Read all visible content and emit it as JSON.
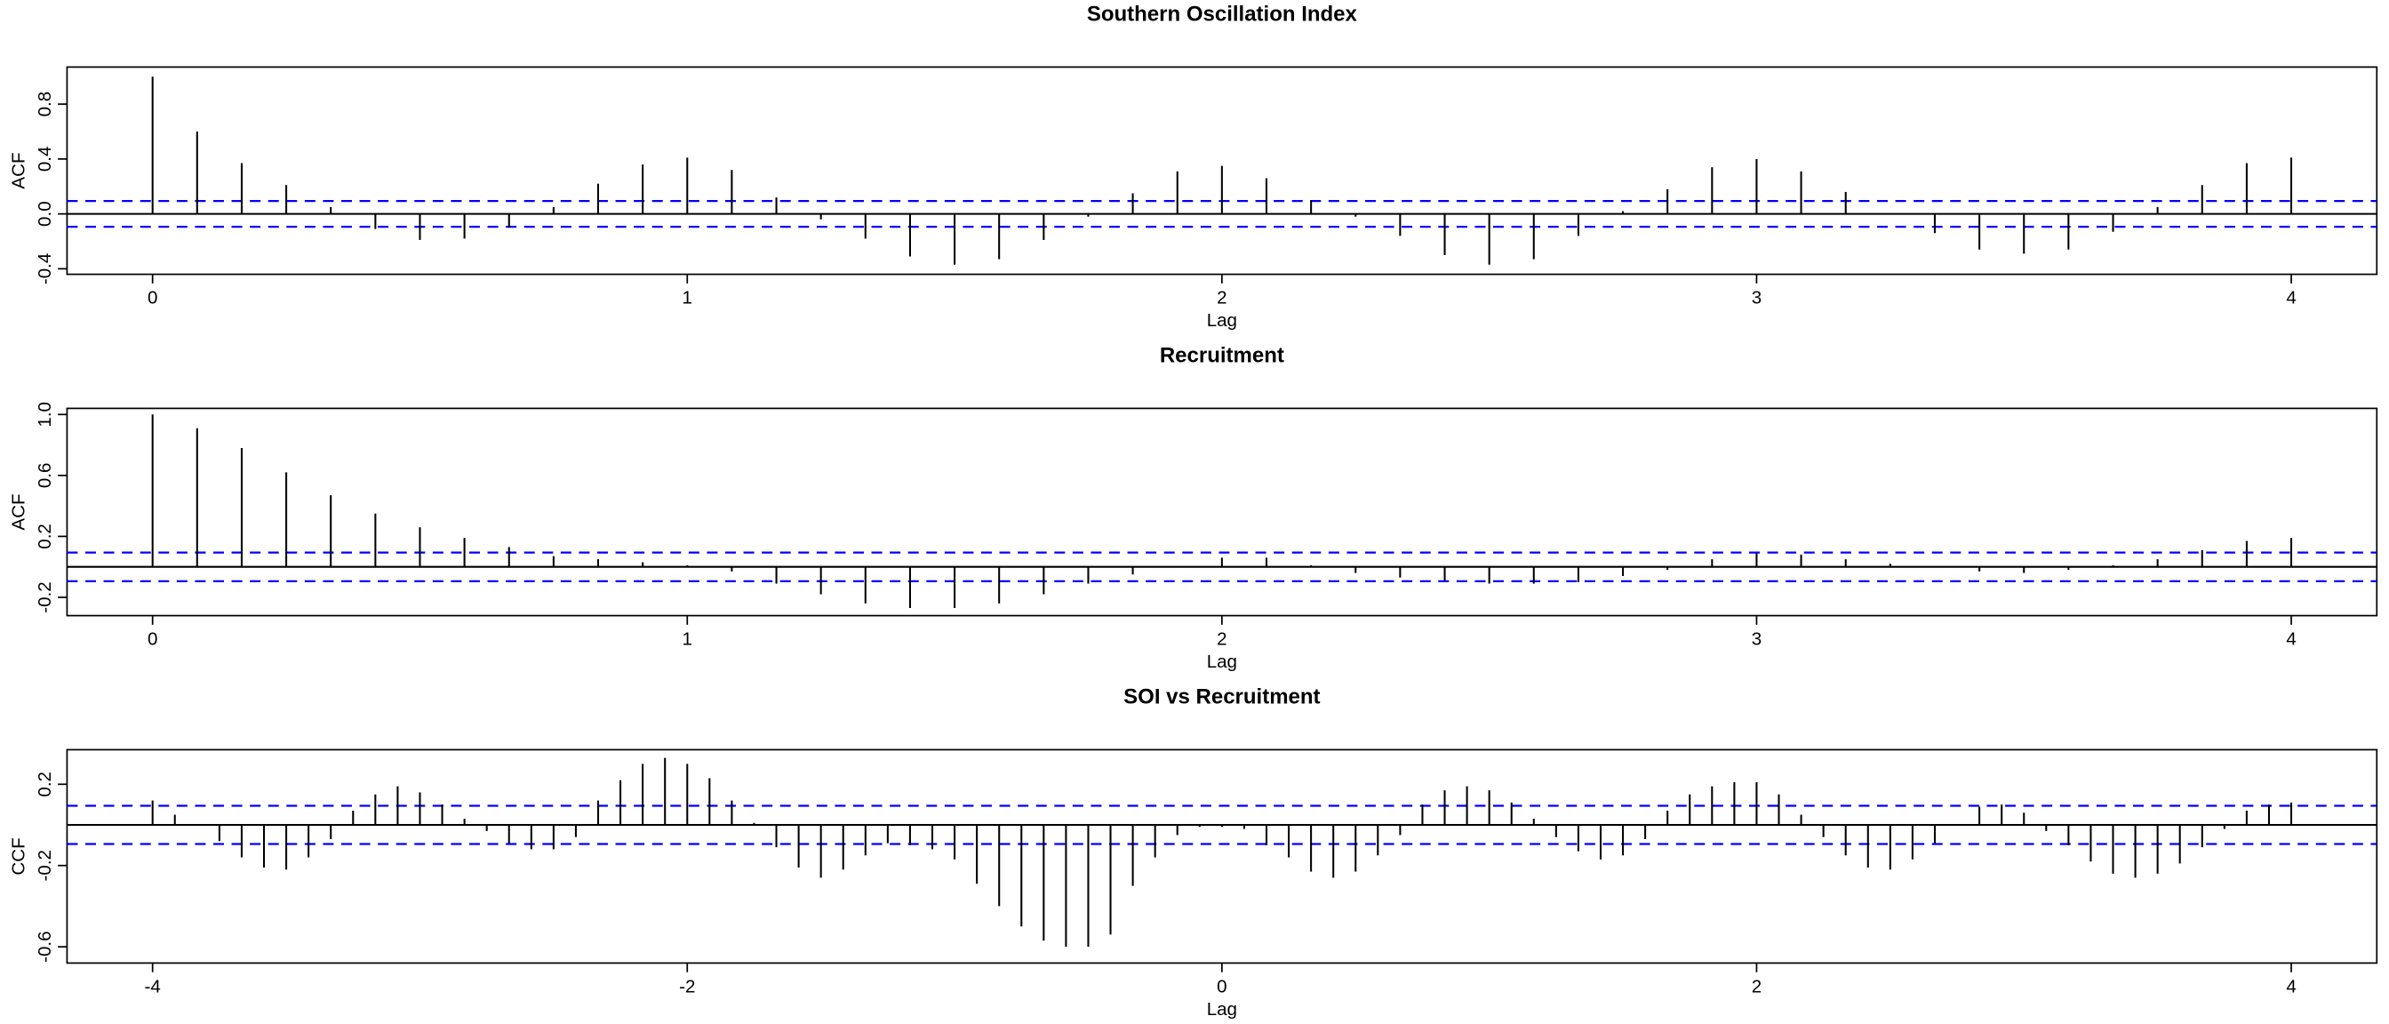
{
  "chart_data": [
    {
      "type": "stem",
      "title": "Southern Oscillation Index",
      "xlabel": "Lag",
      "ylabel": "ACF",
      "color": "#000000",
      "conf_limits": [
        0.094,
        -0.094
      ],
      "conf_color": "#0000ff",
      "x": [
        0,
        0.0833,
        0.1667,
        0.25,
        0.3333,
        0.4167,
        0.5,
        0.5833,
        0.6667,
        0.75,
        0.8333,
        0.9167,
        1,
        1.0833,
        1.1667,
        1.25,
        1.3333,
        1.4167,
        1.5,
        1.5833,
        1.6667,
        1.75,
        1.8333,
        1.9167,
        2,
        2.0833,
        2.1667,
        2.25,
        2.3333,
        2.4167,
        2.5,
        2.5833,
        2.6667,
        2.75,
        2.8333,
        2.9167,
        3,
        3.0833,
        3.1667,
        3.25,
        3.3333,
        3.4167,
        3.5,
        3.5833,
        3.6667,
        3.75,
        3.8333,
        3.9167,
        4
      ],
      "values": [
        1.0,
        0.6,
        0.37,
        0.21,
        0.05,
        -0.11,
        -0.19,
        -0.18,
        -0.1,
        0.05,
        0.22,
        0.36,
        0.41,
        0.32,
        0.12,
        -0.04,
        -0.18,
        -0.31,
        -0.37,
        -0.33,
        -0.19,
        -0.02,
        0.15,
        0.31,
        0.35,
        0.26,
        0.1,
        -0.02,
        -0.16,
        -0.3,
        -0.37,
        -0.33,
        -0.16,
        0.02,
        0.18,
        0.34,
        0.4,
        0.31,
        0.16,
        0.0,
        -0.14,
        -0.26,
        -0.29,
        -0.26,
        -0.13,
        0.05,
        0.21,
        0.37,
        0.41
      ],
      "xlim": [
        -0.16,
        4.16
      ],
      "ylim": [
        -0.44,
        1.07
      ],
      "xticks": [
        0,
        1,
        2,
        3,
        4
      ],
      "yticks": [
        -0.4,
        {
          "value": 0,
          "label": "0.0"
        },
        0.4,
        0.8
      ]
    },
    {
      "type": "stem",
      "title": "Recruitment",
      "xlabel": "Lag",
      "ylabel": "ACF",
      "color": "#000000",
      "conf_limits": [
        0.094,
        -0.094
      ],
      "conf_color": "#0000ff",
      "x": [
        0,
        0.0833,
        0.1667,
        0.25,
        0.3333,
        0.4167,
        0.5,
        0.5833,
        0.6667,
        0.75,
        0.8333,
        0.9167,
        1,
        1.0833,
        1.1667,
        1.25,
        1.3333,
        1.4167,
        1.5,
        1.5833,
        1.6667,
        1.75,
        1.8333,
        1.9167,
        2,
        2.0833,
        2.1667,
        2.25,
        2.3333,
        2.4167,
        2.5,
        2.5833,
        2.6667,
        2.75,
        2.8333,
        2.9167,
        3,
        3.0833,
        3.1667,
        3.25,
        3.3333,
        3.4167,
        3.5,
        3.5833,
        3.6667,
        3.75,
        3.8333,
        3.9167,
        4
      ],
      "values": [
        1.0,
        0.91,
        0.78,
        0.62,
        0.47,
        0.35,
        0.26,
        0.19,
        0.13,
        0.07,
        0.05,
        0.03,
        0.01,
        -0.03,
        -0.11,
        -0.18,
        -0.24,
        -0.27,
        -0.27,
        -0.24,
        -0.18,
        -0.11,
        -0.05,
        0.0,
        0.06,
        0.06,
        0.01,
        -0.04,
        -0.07,
        -0.09,
        -0.11,
        -0.11,
        -0.1,
        -0.06,
        -0.02,
        0.05,
        0.09,
        0.08,
        0.05,
        0.02,
        0.0,
        -0.03,
        -0.04,
        -0.02,
        0.01,
        0.05,
        0.11,
        0.17,
        0.19
      ],
      "xlim": [
        -0.16,
        4.16
      ],
      "ylim": [
        -0.32,
        1.04
      ],
      "xticks": [
        0,
        1,
        2,
        3,
        4
      ],
      "yticks": [
        -0.2,
        0.2,
        0.6,
        {
          "value": 1,
          "label": "1.0"
        }
      ]
    },
    {
      "type": "stem",
      "title": "SOI vs Recruitment",
      "xlabel": "Lag",
      "ylabel": "CCF",
      "color": "#000000",
      "conf_limits": [
        0.094,
        -0.094
      ],
      "conf_color": "#0000ff",
      "x": [
        -4,
        -3.9167,
        -3.8333,
        -3.75,
        -3.6667,
        -3.5833,
        -3.5,
        -3.4167,
        -3.3333,
        -3.25,
        -3.1667,
        -3.0833,
        -3,
        -2.9167,
        -2.8333,
        -2.75,
        -2.6667,
        -2.5833,
        -2.5,
        -2.4167,
        -2.3333,
        -2.25,
        -2.1667,
        -2.0833,
        -2,
        -1.9167,
        -1.8333,
        -1.75,
        -1.6667,
        -1.5833,
        -1.5,
        -1.4167,
        -1.3333,
        -1.25,
        -1.1667,
        -1.0833,
        -1,
        -0.9167,
        -0.8333,
        -0.75,
        -0.6667,
        -0.5833,
        -0.5,
        -0.4167,
        -0.3333,
        -0.25,
        -0.1667,
        -0.0833,
        0,
        0.0833,
        0.1667,
        0.25,
        0.3333,
        0.4167,
        0.5,
        0.5833,
        0.6667,
        0.75,
        0.8333,
        0.9167,
        1,
        1.0833,
        1.1667,
        1.25,
        1.3333,
        1.4167,
        1.5,
        1.5833,
        1.6667,
        1.75,
        1.8333,
        1.9167,
        2,
        2.0833,
        2.1667,
        2.25,
        2.3333,
        2.4167,
        2.5,
        2.5833,
        2.6667,
        2.75,
        2.8333,
        2.9167,
        3,
        3.0833,
        3.1667,
        3.25,
        3.3333,
        3.4167,
        3.5,
        3.5833,
        3.6667,
        3.75,
        3.8333,
        3.9167,
        4
      ],
      "values": [
        0.12,
        0.05,
        0.0,
        -0.08,
        -0.16,
        -0.21,
        -0.22,
        -0.16,
        -0.07,
        0.07,
        0.15,
        0.19,
        0.16,
        0.1,
        0.03,
        -0.03,
        -0.09,
        -0.12,
        -0.12,
        -0.06,
        0.12,
        0.22,
        0.3,
        0.33,
        0.3,
        0.23,
        0.12,
        0.01,
        -0.11,
        -0.21,
        -0.26,
        -0.22,
        -0.15,
        -0.09,
        -0.1,
        -0.12,
        -0.17,
        -0.29,
        -0.4,
        -0.5,
        -0.57,
        -0.6,
        -0.6,
        -0.54,
        -0.3,
        -0.16,
        -0.05,
        -0.01,
        -0.01,
        -0.02,
        -0.1,
        -0.16,
        -0.23,
        -0.26,
        -0.23,
        -0.15,
        -0.05,
        0.1,
        0.17,
        0.19,
        0.17,
        0.11,
        0.03,
        -0.06,
        -0.13,
        -0.17,
        -0.15,
        -0.07,
        0.07,
        0.15,
        0.19,
        0.21,
        0.21,
        0.15,
        0.05,
        -0.06,
        -0.15,
        -0.21,
        -0.22,
        -0.17,
        -0.09,
        0.0,
        0.09,
        0.1,
        0.06,
        -0.03,
        -0.1,
        -0.18,
        -0.24,
        -0.26,
        -0.24,
        -0.19,
        -0.11,
        -0.02,
        0.07,
        0.1,
        0.11
      ],
      "xlim": [
        -4.32,
        4.32
      ],
      "ylim": [
        -0.68,
        0.37
      ],
      "xticks": [
        -4,
        -2,
        0,
        2,
        4
      ],
      "yticks": [
        -0.6,
        -0.2,
        0.2
      ]
    }
  ]
}
